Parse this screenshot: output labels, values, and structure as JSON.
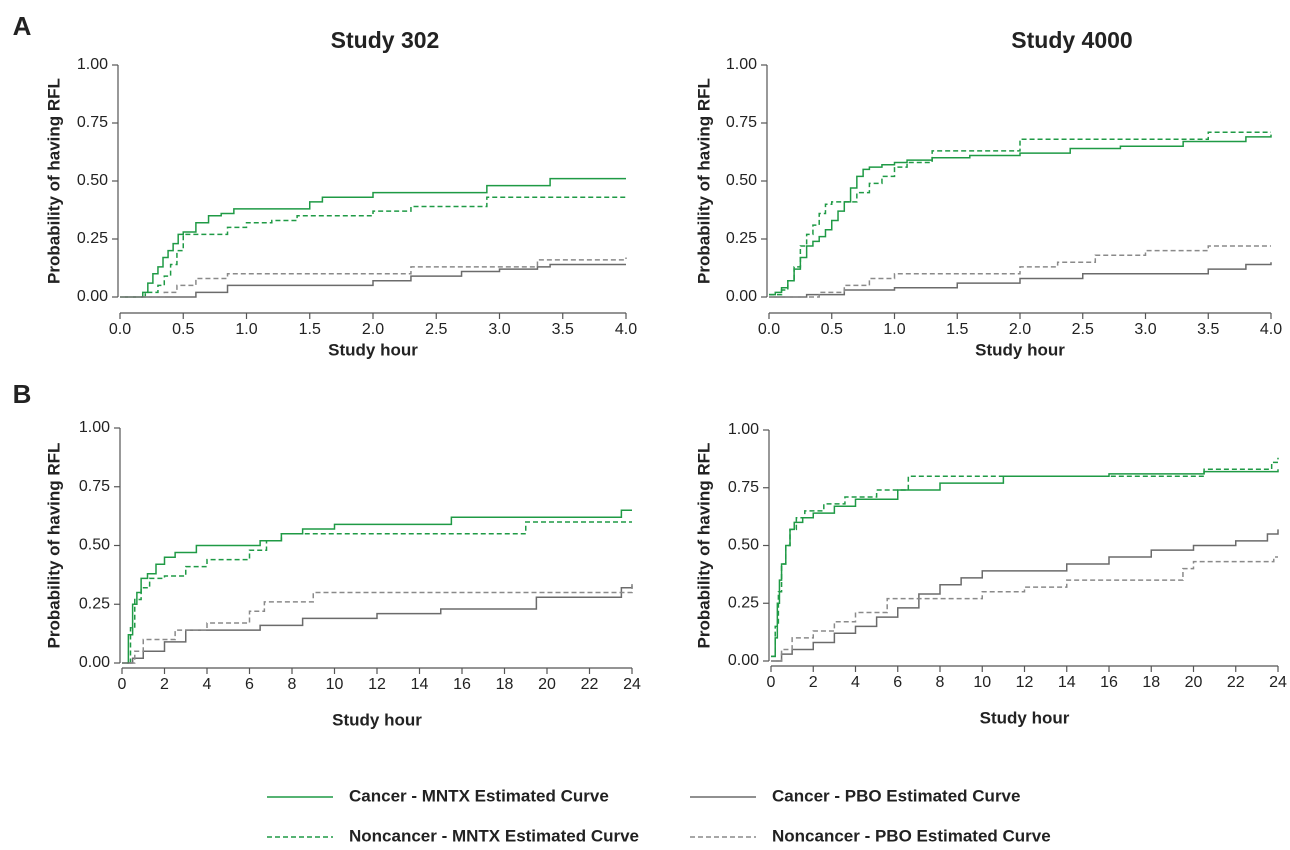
{
  "chart_data": [
    {
      "type": "line",
      "panel": "A",
      "title": "Study 302",
      "xlabel": "Study hour",
      "ylabel": "Probability of having RFL",
      "xlim": [
        0,
        4
      ],
      "ylim": [
        0,
        1
      ],
      "xticks": [
        {
          "value": 0,
          "label": "0.0"
        },
        {
          "value": 0.5,
          "label": "0.5"
        },
        {
          "value": 1,
          "label": "1.0"
        },
        {
          "value": 1.5,
          "label": "1.5"
        },
        {
          "value": 2,
          "label": "2.0"
        },
        {
          "value": 2.5,
          "label": "2.5"
        },
        {
          "value": 3,
          "label": "3.0"
        },
        {
          "value": 3.5,
          "label": "3.5"
        },
        {
          "value": 4,
          "label": "4.0"
        }
      ],
      "yticks": [
        {
          "value": 0,
          "label": "0.00"
        },
        {
          "value": 0.25,
          "label": "0.25"
        },
        {
          "value": 0.5,
          "label": "0.50"
        },
        {
          "value": 0.75,
          "label": "0.75"
        },
        {
          "value": 1,
          "label": "1.00"
        }
      ],
      "series": [
        {
          "name": "Cancer - MNTX Estimated Curve",
          "color": "#1f9a45",
          "dashed": false,
          "x": [
            0,
            0.18,
            0.22,
            0.26,
            0.3,
            0.34,
            0.38,
            0.42,
            0.46,
            0.5,
            0.6,
            0.7,
            0.8,
            0.9,
            1.4,
            1.5,
            1.6,
            2.0,
            2.9,
            3.4,
            4.0
          ],
          "values": [
            0,
            0.02,
            0.06,
            0.1,
            0.13,
            0.17,
            0.2,
            0.23,
            0.27,
            0.28,
            0.32,
            0.35,
            0.36,
            0.38,
            0.38,
            0.41,
            0.43,
            0.45,
            0.48,
            0.51,
            0.51
          ]
        },
        {
          "name": "Noncancer - MNTX Estimated Curve",
          "color": "#1f9a45",
          "dashed": true,
          "x": [
            0,
            0.2,
            0.3,
            0.35,
            0.4,
            0.45,
            0.5,
            0.6,
            0.85,
            1.0,
            1.2,
            1.4,
            2.0,
            2.3,
            2.9,
            4.0
          ],
          "values": [
            0,
            0.02,
            0.05,
            0.09,
            0.14,
            0.2,
            0.27,
            0.27,
            0.3,
            0.32,
            0.33,
            0.35,
            0.37,
            0.39,
            0.43,
            0.43
          ]
        },
        {
          "name": "Cancer - PBO Estimated Curve",
          "color": "#6b6b6b",
          "dashed": false,
          "x": [
            0,
            0.6,
            0.85,
            1.3,
            2.0,
            2.3,
            2.7,
            3.0,
            3.3,
            3.4,
            4.0
          ],
          "values": [
            0,
            0.02,
            0.05,
            0.05,
            0.07,
            0.09,
            0.11,
            0.12,
            0.13,
            0.14,
            0.14
          ]
        },
        {
          "name": "Noncancer - PBO Estimated Curve",
          "color": "#8a8a8a",
          "dashed": true,
          "x": [
            0,
            0.35,
            0.45,
            0.6,
            0.85,
            1.0,
            2.3,
            3.3,
            4.0
          ],
          "values": [
            0,
            0.02,
            0.05,
            0.08,
            0.1,
            0.1,
            0.13,
            0.16,
            0.17
          ]
        }
      ]
    },
    {
      "type": "line",
      "title": "Study 4000",
      "xlabel": "Study hour",
      "ylabel": "Probability of having RFL",
      "xlim": [
        0,
        4
      ],
      "ylim": [
        0,
        1
      ],
      "xticks": [
        {
          "value": 0,
          "label": "0.0"
        },
        {
          "value": 0.5,
          "label": "0.5"
        },
        {
          "value": 1,
          "label": "1.0"
        },
        {
          "value": 1.5,
          "label": "1.5"
        },
        {
          "value": 2,
          "label": "2.0"
        },
        {
          "value": 2.5,
          "label": "2.5"
        },
        {
          "value": 3,
          "label": "3.0"
        },
        {
          "value": 3.5,
          "label": "3.5"
        },
        {
          "value": 4,
          "label": "4.0"
        }
      ],
      "yticks": [
        {
          "value": 0,
          "label": "0.00"
        },
        {
          "value": 0.25,
          "label": "0.25"
        },
        {
          "value": 0.5,
          "label": "0.50"
        },
        {
          "value": 0.75,
          "label": "0.75"
        },
        {
          "value": 1,
          "label": "1.00"
        }
      ],
      "series": [
        {
          "color": "#1f9a45",
          "dashed": false,
          "x": [
            0,
            0.05,
            0.1,
            0.15,
            0.2,
            0.25,
            0.3,
            0.35,
            0.4,
            0.45,
            0.5,
            0.55,
            0.6,
            0.65,
            0.7,
            0.75,
            0.8,
            0.9,
            1.0,
            1.1,
            1.3,
            1.6,
            2.0,
            2.4,
            2.8,
            3.3,
            3.8,
            4.0
          ],
          "values": [
            0.01,
            0.02,
            0.04,
            0.07,
            0.12,
            0.17,
            0.22,
            0.24,
            0.26,
            0.29,
            0.33,
            0.37,
            0.41,
            0.47,
            0.52,
            0.55,
            0.56,
            0.57,
            0.58,
            0.59,
            0.6,
            0.61,
            0.62,
            0.64,
            0.65,
            0.67,
            0.69,
            0.7
          ]
        },
        {
          "color": "#1f9a45",
          "dashed": true,
          "x": [
            0,
            0.1,
            0.15,
            0.2,
            0.25,
            0.3,
            0.35,
            0.4,
            0.45,
            0.5,
            0.6,
            0.7,
            0.8,
            0.9,
            1.0,
            1.1,
            1.3,
            2.0,
            3.5,
            4.0
          ],
          "values": [
            0.01,
            0.03,
            0.07,
            0.13,
            0.22,
            0.27,
            0.31,
            0.36,
            0.4,
            0.41,
            0.41,
            0.45,
            0.49,
            0.52,
            0.56,
            0.58,
            0.63,
            0.68,
            0.71,
            0.71
          ]
        },
        {
          "color": "#6b6b6b",
          "dashed": false,
          "x": [
            0,
            0.3,
            0.6,
            1.0,
            1.5,
            2.0,
            2.5,
            3.0,
            3.5,
            3.8,
            4.0
          ],
          "values": [
            0,
            0.01,
            0.03,
            0.04,
            0.06,
            0.08,
            0.1,
            0.1,
            0.12,
            0.14,
            0.15
          ]
        },
        {
          "color": "#8a8a8a",
          "dashed": true,
          "x": [
            0,
            0.4,
            0.6,
            0.8,
            1.0,
            1.5,
            2.0,
            2.3,
            2.6,
            3.0,
            3.5,
            4.0
          ],
          "values": [
            0,
            0.02,
            0.05,
            0.08,
            0.1,
            0.1,
            0.13,
            0.15,
            0.18,
            0.2,
            0.22,
            0.22
          ]
        }
      ]
    },
    {
      "type": "line",
      "panel": "B",
      "xlabel": "Study hour",
      "ylabel": "Probability of having RFL",
      "xlim": [
        0,
        24
      ],
      "ylim": [
        0,
        1
      ],
      "xticks": [
        0,
        2,
        4,
        6,
        8,
        10,
        12,
        14,
        16,
        18,
        20,
        22,
        24
      ],
      "yticks": [
        {
          "value": 0,
          "label": "0.00"
        },
        {
          "value": 0.25,
          "label": "0.25"
        },
        {
          "value": 0.5,
          "label": "0.50"
        },
        {
          "value": 0.75,
          "label": "0.75"
        },
        {
          "value": 1,
          "label": "1.00"
        }
      ],
      "series": [
        {
          "color": "#1f9a45",
          "dashed": false,
          "x": [
            0,
            0.3,
            0.5,
            0.7,
            0.9,
            1.2,
            1.6,
            2.0,
            2.5,
            3.5,
            6.5,
            7.5,
            8.5,
            10,
            15.5,
            23.5,
            24
          ],
          "values": [
            0,
            0.12,
            0.25,
            0.3,
            0.36,
            0.38,
            0.42,
            0.45,
            0.47,
            0.5,
            0.52,
            0.55,
            0.57,
            0.59,
            0.62,
            0.65,
            0.65
          ]
        },
        {
          "color": "#1f9a45",
          "dashed": true,
          "x": [
            0,
            0.4,
            0.6,
            0.9,
            1.3,
            2.0,
            3.0,
            4.0,
            6.0,
            6.8,
            7.5,
            19,
            24
          ],
          "values": [
            0,
            0.15,
            0.27,
            0.32,
            0.36,
            0.37,
            0.41,
            0.44,
            0.48,
            0.52,
            0.55,
            0.6,
            0.6
          ]
        },
        {
          "color": "#6b6b6b",
          "dashed": false,
          "x": [
            0,
            0.5,
            1.0,
            2.0,
            3.0,
            6.5,
            8.5,
            12,
            15,
            19.5,
            23.5,
            24
          ],
          "values": [
            0,
            0.02,
            0.05,
            0.09,
            0.14,
            0.16,
            0.19,
            0.21,
            0.23,
            0.28,
            0.32,
            0.33
          ]
        },
        {
          "color": "#8a8a8a",
          "dashed": true,
          "x": [
            0,
            0.6,
            1.0,
            2.5,
            4.0,
            6.0,
            6.7,
            9.0,
            24
          ],
          "values": [
            0,
            0.05,
            0.1,
            0.14,
            0.17,
            0.22,
            0.26,
            0.3,
            0.34
          ]
        }
      ]
    },
    {
      "type": "line",
      "xlabel": "Study hour",
      "ylabel": "Probability of having RFL",
      "xlim": [
        0,
        24
      ],
      "ylim": [
        0,
        1
      ],
      "xticks": [
        0,
        2,
        4,
        6,
        8,
        10,
        12,
        14,
        16,
        18,
        20,
        22,
        24
      ],
      "yticks": [
        {
          "value": 0,
          "label": "0.00"
        },
        {
          "value": 0.25,
          "label": "0.25"
        },
        {
          "value": 0.5,
          "label": "0.50"
        },
        {
          "value": 0.75,
          "label": "0.75"
        },
        {
          "value": 1,
          "label": "1.00"
        }
      ],
      "series": [
        {
          "color": "#1f9a45",
          "dashed": false,
          "x": [
            0,
            0.2,
            0.3,
            0.4,
            0.5,
            0.7,
            0.9,
            1.1,
            1.5,
            2.0,
            3.0,
            4.0,
            6.0,
            8.0,
            11,
            16,
            20.5,
            24
          ],
          "values": [
            0.02,
            0.1,
            0.25,
            0.35,
            0.42,
            0.5,
            0.57,
            0.6,
            0.62,
            0.64,
            0.67,
            0.7,
            0.74,
            0.77,
            0.8,
            0.81,
            0.82,
            0.83
          ]
        },
        {
          "color": "#1f9a45",
          "dashed": true,
          "x": [
            0,
            0.2,
            0.35,
            0.5,
            0.7,
            0.9,
            1.2,
            1.6,
            2.5,
            3.5,
            5.0,
            6.5,
            10.5,
            20.5,
            23.7,
            24
          ],
          "values": [
            0.02,
            0.15,
            0.3,
            0.42,
            0.5,
            0.57,
            0.62,
            0.65,
            0.68,
            0.71,
            0.74,
            0.8,
            0.8,
            0.83,
            0.86,
            0.88
          ]
        },
        {
          "color": "#6b6b6b",
          "dashed": false,
          "x": [
            0,
            0.5,
            1.0,
            2.0,
            3.0,
            4.0,
            5.0,
            6.0,
            7.0,
            8.0,
            9.0,
            10,
            14,
            16,
            18,
            20,
            22,
            23.5,
            24
          ],
          "values": [
            0,
            0.03,
            0.05,
            0.08,
            0.12,
            0.15,
            0.19,
            0.23,
            0.29,
            0.33,
            0.36,
            0.39,
            0.42,
            0.45,
            0.48,
            0.5,
            0.52,
            0.55,
            0.57
          ]
        },
        {
          "color": "#8a8a8a",
          "dashed": true,
          "x": [
            0,
            0.5,
            1.0,
            2.0,
            3.0,
            4.0,
            5.5,
            8.0,
            10,
            12,
            14,
            18,
            19.5,
            20,
            23.8,
            24
          ],
          "values": [
            0,
            0.05,
            0.1,
            0.13,
            0.17,
            0.21,
            0.27,
            0.27,
            0.3,
            0.32,
            0.35,
            0.35,
            0.4,
            0.43,
            0.45,
            0.45
          ]
        }
      ]
    }
  ]
}
